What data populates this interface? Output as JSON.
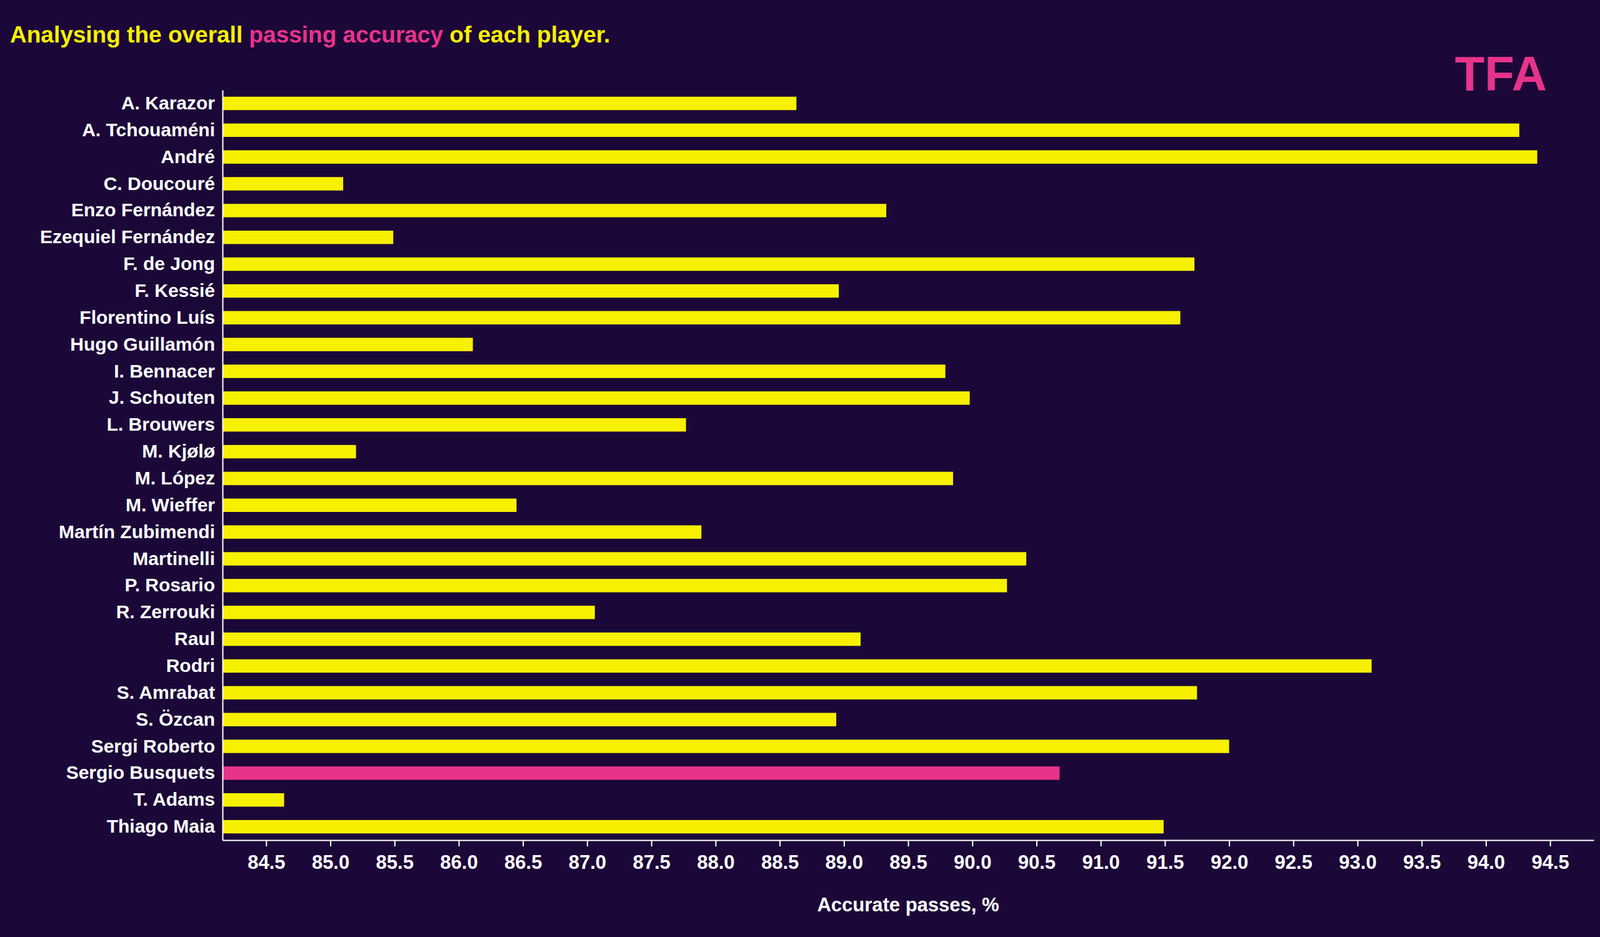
{
  "chart_data": {
    "type": "bar",
    "orientation": "horizontal",
    "title": [
      "Analysing the overall ",
      "passing accuracy",
      " of each player."
    ],
    "annotations": [
      "TFA"
    ],
    "x_label": "Accurate passes, %",
    "categories": [
      "A. Karazor",
      "A. Tchouaméni",
      "André",
      "C. Doucouré",
      "Enzo Fernández",
      "Ezequiel Fernández",
      "F. de Jong",
      "F. Kessié",
      "Florentino Luís",
      "Hugo Guillamón",
      "I. Bennacer",
      "J. Schouten",
      "L. Brouwers",
      "M. Kjølø",
      "M. López",
      "M. Wieffer",
      "Martín Zubimendi",
      "Martinelli",
      "P. Rosario",
      "R. Zerrouki",
      "Raul",
      "Rodri",
      "S. Amrabat",
      "S. Özcan",
      "Sergi Roberto",
      "Sergio Busquets",
      "T. Adams",
      "Thiago Maia"
    ],
    "values": [
      88.63,
      94.26,
      94.4,
      85.1,
      89.33,
      85.49,
      91.73,
      88.96,
      91.62,
      86.11,
      89.79,
      89.98,
      87.77,
      85.2,
      89.85,
      86.45,
      87.89,
      90.42,
      90.27,
      87.06,
      89.13,
      93.11,
      91.75,
      88.94,
      92.0,
      90.68,
      84.64,
      91.49
    ],
    "colors": [
      "#f7f000",
      "#f7f000",
      "#f7f000",
      "#f7f000",
      "#f7f000",
      "#f7f000",
      "#f7f000",
      "#f7f000",
      "#f7f000",
      "#f7f000",
      "#f7f000",
      "#f7f000",
      "#f7f000",
      "#f7f000",
      "#f7f000",
      "#f7f000",
      "#f7f000",
      "#f7f000",
      "#f7f000",
      "#f7f000",
      "#f7f000",
      "#f7f000",
      "#f7f000",
      "#f7f000",
      "#f7f000",
      "#e8338a",
      "#f7f000",
      "#f7f000"
    ],
    "xlim": [
      84.16,
      94.84
    ],
    "xticks": [
      84.5,
      {
        "value": 85,
        "label": "85.0"
      },
      85.5,
      {
        "value": 86,
        "label": "86.0"
      },
      86.5,
      {
        "value": 87,
        "label": "87.0"
      },
      87.5,
      {
        "value": 88,
        "label": "88.0"
      },
      88.5,
      {
        "value": 89,
        "label": "89.0"
      },
      89.5,
      {
        "value": 90,
        "label": "90.0"
      },
      90.5,
      {
        "value": 91,
        "label": "91.0"
      },
      91.5,
      {
        "value": 92,
        "label": "92.0"
      },
      92.5,
      {
        "value": 93,
        "label": "93.0"
      },
      93.5,
      {
        "value": 94,
        "label": "94.0"
      },
      94.5
    ],
    "grid": false
  }
}
